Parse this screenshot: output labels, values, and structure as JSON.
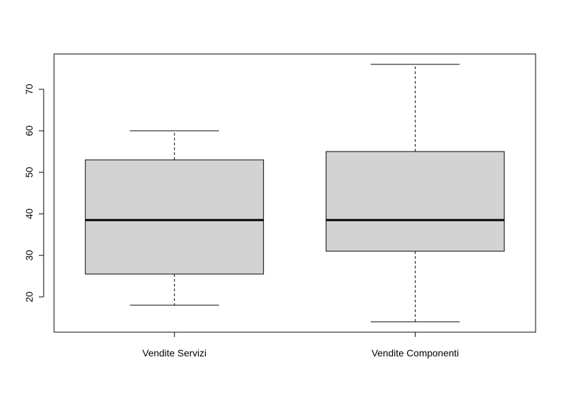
{
  "chart_data": {
    "type": "boxplot",
    "title": "",
    "xlabel": "",
    "ylabel": "",
    "ylim": [
      11.5,
      78.5
    ],
    "yticks": [
      20,
      30,
      40,
      50,
      60,
      70
    ],
    "grid": false,
    "legend": "none",
    "box_fill": "#d3d3d3",
    "line_color": "#000000",
    "series": [
      {
        "name": "Vendite Servizi",
        "min": 18,
        "q1": 25.5,
        "median": 38.5,
        "q3": 53,
        "max": 60
      },
      {
        "name": "Vendite Componenti",
        "min": 14,
        "q1": 31,
        "median": 38.5,
        "q3": 55,
        "max": 76
      }
    ]
  }
}
